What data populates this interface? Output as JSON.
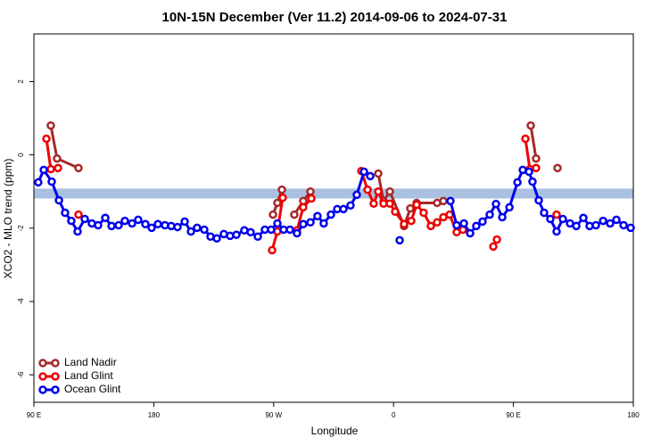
{
  "chart_data": {
    "type": "line",
    "title": "10N-15N December (Ver 11.2)   2014-09-06 to 2024-07-31",
    "x_label": "Longitude",
    "y_label": "XCO2 - MLO trend (ppm)",
    "xlim": [
      90,
      540
    ],
    "ylim": [
      -6.75,
      3.3
    ],
    "xticks": [
      {
        "value": 90,
        "label": "90 E"
      },
      180,
      {
        "value": 270,
        "label": "90 W"
      },
      {
        "value": 360,
        "label": "0"
      },
      {
        "value": 450,
        "label": "90 E"
      },
      {
        "value": 540,
        "label": "180"
      }
    ],
    "yticks": [
      2,
      0,
      -2,
      -4,
      -6
    ],
    "band": [
      -1.19,
      -0.92
    ],
    "band_color": "#a9c0e0",
    "legend": "bottom-left",
    "series": [
      {
        "name": "Land Nadir",
        "color": "#a52a2a",
        "x": [
          102.7,
          107.4,
          123.5,
          null,
          269.5,
          272.8,
          276.2,
          null,
          285.5,
          292.2,
          297.6,
          null,
          348.5,
          352.5,
          357.2,
          367.9,
          372.6,
          377.3,
          392.7,
          397.4,
          null,
          463,
          467,
          null,
          483.1
        ],
        "values": [
          0.8,
          -0.1,
          -0.36,
          null,
          -1.63,
          -1.31,
          -0.95,
          null,
          -1.63,
          -1.26,
          -1.0,
          null,
          -0.51,
          -1.26,
          -1.0,
          -1.94,
          -1.46,
          -1.31,
          -1.31,
          -1.26,
          null,
          0.8,
          -0.1,
          null,
          -0.36
        ]
      },
      {
        "name": "Land Glint",
        "color": "#ee0000",
        "x": [
          99.4,
          102.7,
          108.1,
          null,
          123.5,
          null,
          268.8,
          272.8,
          276.8,
          null,
          287.5,
          292.2,
          298.3,
          null,
          335.8,
          340.5,
          345.1,
          348.5,
          352.5,
          357.2,
          361.2,
          367.9,
          373.3,
          377.3,
          382.6,
          388,
          392.7,
          397.4,
          402.1,
          407.4,
          412.1,
          null,
          434.9,
          437.6,
          null,
          459,
          462.3,
          467,
          null,
          482.4
        ],
        "values": [
          0.44,
          -0.39,
          -0.36,
          null,
          -1.63,
          null,
          -2.6,
          -2.09,
          -1.17,
          null,
          -2.06,
          -1.43,
          -1.19,
          null,
          -0.44,
          -0.95,
          -1.33,
          -1.0,
          -1.33,
          -1.33,
          -1.55,
          -1.89,
          -1.8,
          -1.36,
          -1.58,
          -1.94,
          -1.84,
          -1.7,
          -1.63,
          -2.11,
          -2.04,
          null,
          -2.5,
          -2.31,
          null,
          0.44,
          -0.39,
          -0.36,
          null,
          -1.63
        ]
      },
      {
        "name": "Ocean Glint",
        "color": "#0000ee",
        "x": [
          93.3,
          97.4,
          103.4,
          108.8,
          113.4,
          118.1,
          122.8,
          128.2,
          133.5,
          138.2,
          143.6,
          148.3,
          153.6,
          158.3,
          163.7,
          168.3,
          173.7,
          178.4,
          183.1,
          188.4,
          193.1,
          197.8,
          203.2,
          207.9,
          212.5,
          217.9,
          222.6,
          227.3,
          232.6,
          237.3,
          242,
          248,
          252.7,
          258.1,
          263.4,
          268.1,
          272.8,
          277.5,
          282.2,
          287.5,
          292.2,
          297.6,
          302.9,
          307.6,
          313,
          317.7,
          322.4,
          327.7,
          332.4,
          337.8,
          342.5,
          null,
          364.6,
          null,
          402.7,
          407.4,
          412.8,
          417.5,
          422.1,
          426.8,
          432.2,
          436.9,
          441.6,
          447,
          453,
          457,
          461.7,
          464.3,
          469,
          473,
          477.7,
          482.4,
          487.1,
          492.5,
          497.2,
          502.5,
          507.2,
          511.9,
          517.3,
          522.6,
          527.3,
          532.7,
          538
        ],
        "values": [
          -0.75,
          -0.41,
          -0.73,
          -1.24,
          -1.58,
          -1.8,
          -2.09,
          -1.75,
          -1.87,
          -1.92,
          -1.72,
          -1.94,
          -1.92,
          -1.8,
          -1.87,
          -1.77,
          -1.89,
          -1.99,
          -1.89,
          -1.92,
          -1.94,
          -1.97,
          -1.82,
          -2.09,
          -1.99,
          -2.04,
          -2.23,
          -2.28,
          -2.16,
          -2.21,
          -2.18,
          -2.06,
          -2.11,
          -2.23,
          -2.04,
          -2.04,
          -1.87,
          -2.04,
          -2.04,
          -2.14,
          -1.89,
          -1.84,
          -1.67,
          -1.87,
          -1.63,
          -1.48,
          -1.48,
          -1.38,
          -1.09,
          -0.46,
          -0.58,
          null,
          -2.33,
          null,
          -1.26,
          -1.92,
          -1.87,
          -2.14,
          -1.94,
          -1.82,
          -1.63,
          -1.34,
          -1.7,
          -1.43,
          -0.75,
          -0.41,
          -0.46,
          -0.73,
          -1.24,
          -1.58,
          -1.75,
          -2.09,
          -1.75,
          -1.87,
          -1.94,
          -1.72,
          -1.94,
          -1.92,
          -1.8,
          -1.87,
          -1.77,
          -1.92,
          -1.99
        ]
      }
    ]
  }
}
